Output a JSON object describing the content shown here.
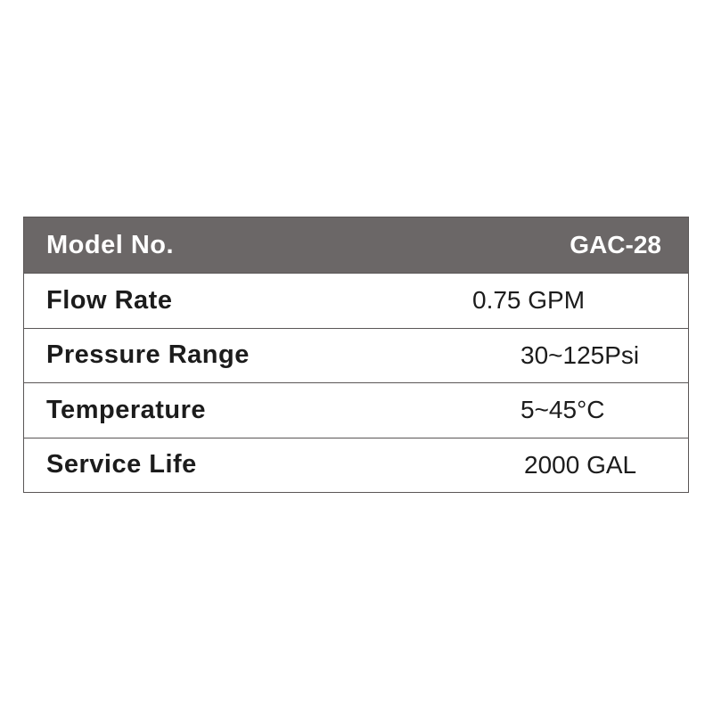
{
  "header": {
    "label": "Model No.",
    "value": "GAC-28"
  },
  "rows": [
    {
      "label": "Flow Rate",
      "value": "0.75 GPM"
    },
    {
      "label": "Pressure Range",
      "value": "30~125Psi"
    },
    {
      "label": "Temperature",
      "value": "5~45°C"
    },
    {
      "label": "Service Life",
      "value": "2000 GAL"
    }
  ],
  "colors": {
    "header_bg": "#6b6767",
    "border": "#5a5656",
    "text": "#1c1c1c"
  }
}
